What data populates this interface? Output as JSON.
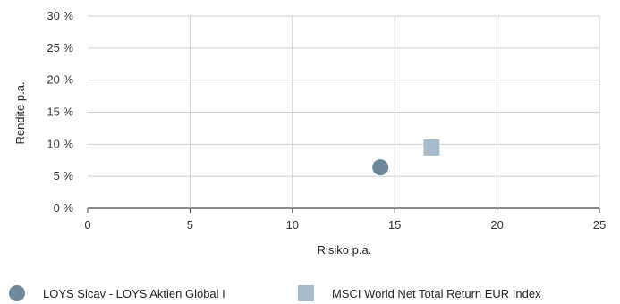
{
  "chart_data": {
    "type": "scatter",
    "xlabel": "Risiko p.a.",
    "ylabel": "Rendite p.a.",
    "xlim": [
      0,
      25
    ],
    "ylim": [
      0,
      30
    ],
    "x_ticks": [
      0,
      5,
      10,
      15,
      20,
      25
    ],
    "x_tick_labels": [
      "0",
      "5",
      "10",
      "15",
      "20",
      "25"
    ],
    "y_ticks": [
      0,
      5,
      10,
      15,
      20,
      25,
      30
    ],
    "y_tick_labels": [
      "0 %",
      "5 %",
      "10 %",
      "15 %",
      "20 %",
      "25 %",
      "30 %"
    ],
    "grid": true,
    "legend_position": "bottom",
    "series": [
      {
        "name": "LOYS Sicav - LOYS Aktien Global I",
        "marker": "circle",
        "color": "#6e8799",
        "x": 14.3,
        "y": 6.4
      },
      {
        "name": "MSCI World Net Total Return EUR Index",
        "marker": "square",
        "color": "#a8bccb",
        "x": 16.8,
        "y": 9.5
      }
    ]
  }
}
